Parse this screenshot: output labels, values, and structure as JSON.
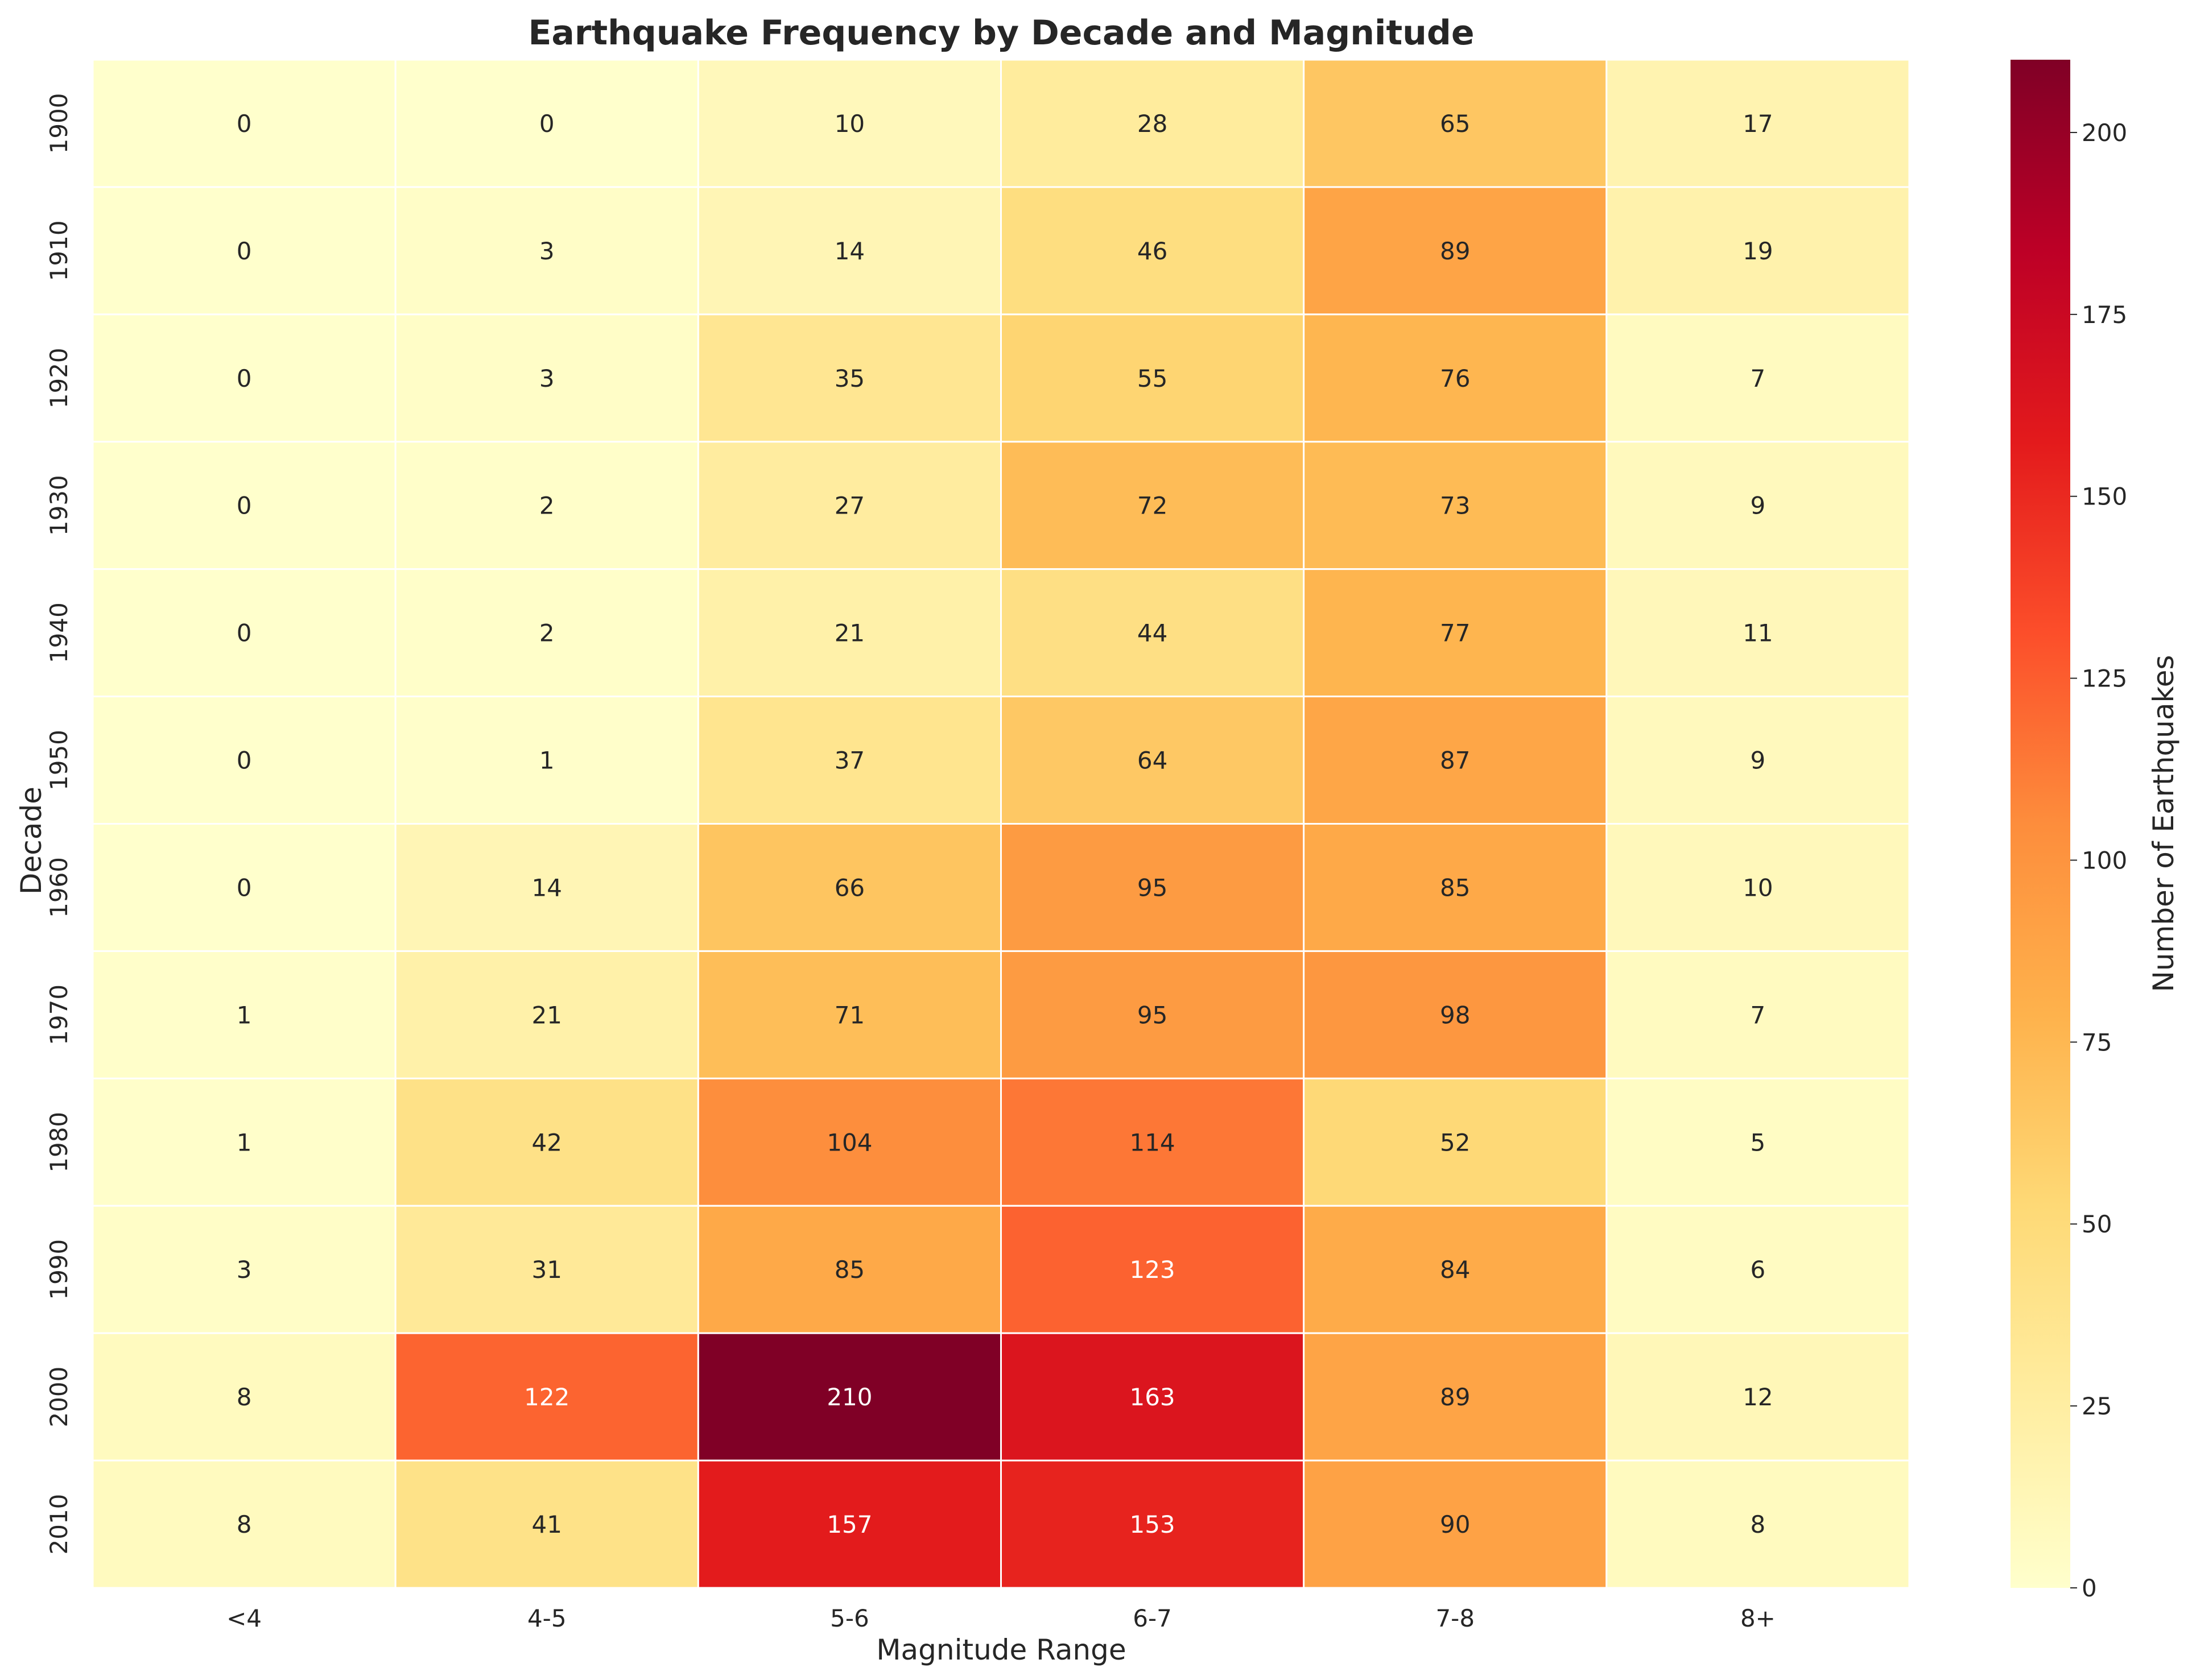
{
  "chart_data": {
    "type": "heatmap",
    "title": "Earthquake Frequency by Decade and Magnitude",
    "xlabel": "Magnitude Range",
    "ylabel": "Decade",
    "x_categories": [
      "<4",
      "4-5",
      "5-6",
      "6-7",
      "7-8",
      "8+"
    ],
    "y_categories": [
      "1900",
      "1910",
      "1920",
      "1930",
      "1940",
      "1950",
      "1960",
      "1970",
      "1980",
      "1990",
      "2000",
      "2010"
    ],
    "values": [
      [
        0,
        0,
        10,
        28,
        65,
        17
      ],
      [
        0,
        3,
        14,
        46,
        89,
        19
      ],
      [
        0,
        3,
        35,
        55,
        76,
        7
      ],
      [
        0,
        2,
        27,
        72,
        73,
        9
      ],
      [
        0,
        2,
        21,
        44,
        77,
        11
      ],
      [
        0,
        1,
        37,
        64,
        87,
        9
      ],
      [
        0,
        14,
        66,
        95,
        85,
        10
      ],
      [
        1,
        21,
        71,
        95,
        98,
        7
      ],
      [
        1,
        42,
        104,
        114,
        52,
        5
      ],
      [
        3,
        31,
        85,
        123,
        84,
        6
      ],
      [
        8,
        122,
        210,
        163,
        89,
        12
      ],
      [
        8,
        41,
        157,
        153,
        90,
        8
      ]
    ],
    "colorbar": {
      "label": "Number of Earthquakes",
      "vmin": 0,
      "vmax": 210,
      "ticks": [
        0,
        25,
        50,
        75,
        100,
        125,
        150,
        175,
        200
      ],
      "colormap": "YlOrRd"
    },
    "annotations": "cell values shown",
    "grid": false
  }
}
